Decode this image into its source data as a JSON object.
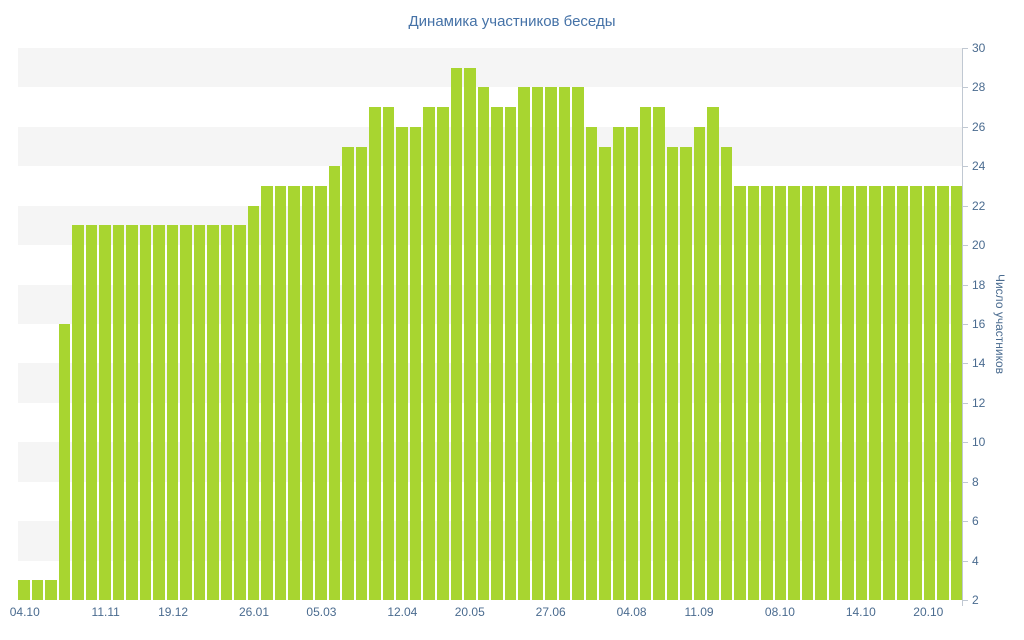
{
  "chart_data": {
    "type": "bar",
    "title": "Динамика участников беседы",
    "xlabel": "",
    "ylabel": "Число участников",
    "ymin": 2,
    "ymax": 30,
    "y_ticks": [
      2,
      4,
      6,
      8,
      10,
      12,
      14,
      16,
      18,
      20,
      22,
      24,
      26,
      28,
      30
    ],
    "grid": "alternating-bands",
    "legend": "off",
    "band_values": [
      4,
      8,
      12,
      16,
      20,
      24,
      28
    ],
    "band_size": 2,
    "values": [
      3,
      3,
      3,
      16,
      21,
      21,
      21,
      21,
      21,
      21,
      21,
      21,
      21,
      21,
      21,
      21,
      21,
      22,
      23,
      23,
      23,
      23,
      23,
      24,
      25,
      25,
      27,
      27,
      26,
      26,
      27,
      27,
      29,
      29,
      28,
      27,
      27,
      28,
      28,
      28,
      28,
      28,
      26,
      25,
      26,
      26,
      27,
      27,
      25,
      25,
      26,
      27,
      25,
      23,
      23,
      23,
      23,
      23,
      23,
      23,
      23,
      23,
      23,
      23,
      23,
      23,
      23,
      23,
      23,
      23
    ],
    "x_tick_labels": [
      {
        "label": "04.10",
        "bar": 1
      },
      {
        "label": "11.11",
        "bar": 7
      },
      {
        "label": "19.12",
        "bar": 12
      },
      {
        "label": "26.01",
        "bar": 18
      },
      {
        "label": "05.03",
        "bar": 23
      },
      {
        "label": "12.04",
        "bar": 29
      },
      {
        "label": "20.05",
        "bar": 34
      },
      {
        "label": "27.06",
        "bar": 40
      },
      {
        "label": "04.08",
        "bar": 46
      },
      {
        "label": "11.09",
        "bar": 51
      },
      {
        "label": "08.10",
        "bar": 57
      },
      {
        "label": "14.10",
        "bar": 63
      },
      {
        "label": "20.10",
        "bar": 68
      }
    ],
    "colors": {
      "bar": "#a8d530",
      "band": "#f5f5f5",
      "title": "#4572a7",
      "tick": "#4a6b8f",
      "axis": "#c0c8d2"
    }
  }
}
